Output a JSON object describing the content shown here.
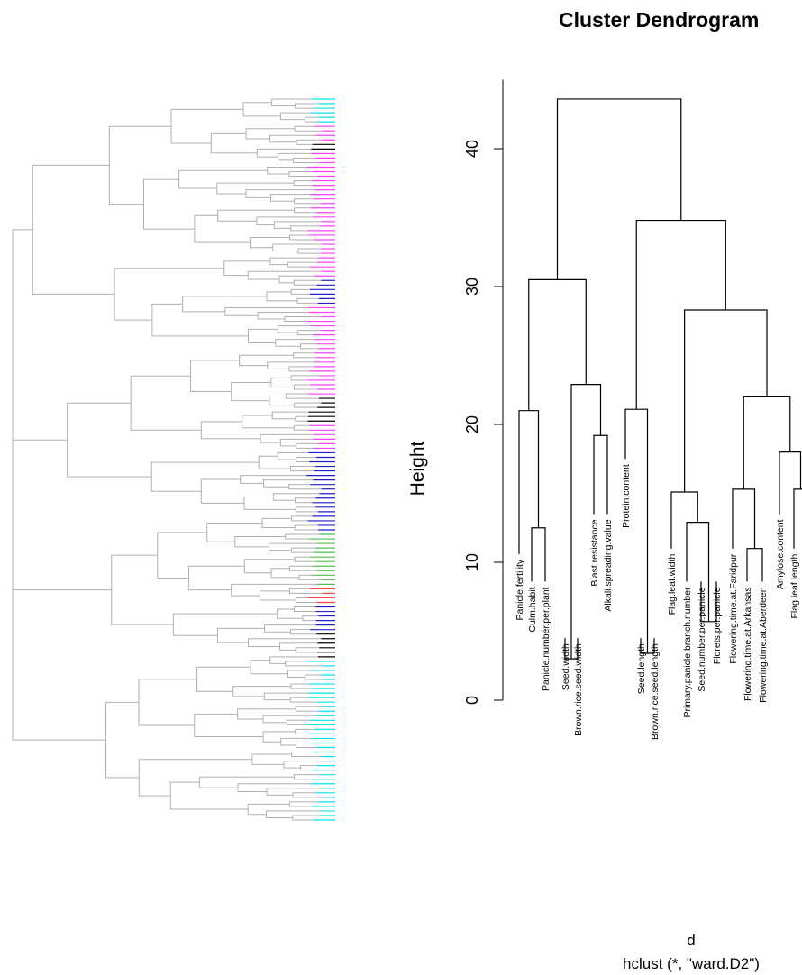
{
  "chart_data": {
    "type": "dendrogram",
    "title": "Cluster Dendrogram",
    "ylabel": "Height",
    "xlabel": "d",
    "sublabel": "hclust (*, \"ward.D2\")",
    "ylim": [
      0,
      45
    ],
    "yticks": [
      0,
      10,
      20,
      30,
      40
    ],
    "leaves": [
      "Panicle.fertility",
      "Culm.habit",
      "Panicle.number.per.plant",
      "Seed.width",
      "Brown.rice.seed.width",
      "Blast.resistance",
      "Alkali.spreading.value",
      "Protein.content",
      "Seed.length",
      "Brown.rice.seed.length",
      "Flag.leaf.width",
      "Primary.panicle.branch.number",
      "Seed.number.per.panicle",
      "Florets.per.panicle",
      "Flowering.time.at.Faridpur",
      "Flowering.time.at.Arkansas",
      "Flowering.time.at.Aberdeen",
      "Amylose.content",
      "Flag.leaf.length"
    ],
    "merges": [
      {
        "id": "m_cp",
        "children": [
          "L1",
          "L2"
        ],
        "height": 12.5
      },
      {
        "id": "m_pcp",
        "children": [
          "L0",
          "m_cp"
        ],
        "height": 21
      },
      {
        "id": "m_sw",
        "children": [
          "L3",
          "L4"
        ],
        "height": 3
      },
      {
        "id": "m_ba",
        "children": [
          "L5",
          "L6"
        ],
        "height": 19.2
      },
      {
        "id": "m_swba",
        "children": [
          "m_sw",
          "m_ba"
        ],
        "height": 22.9
      },
      {
        "id": "m_A",
        "children": [
          "m_pcp",
          "m_swba"
        ],
        "height": 30.5
      },
      {
        "id": "m_sl",
        "children": [
          "L8",
          "L9"
        ],
        "height": 3.4
      },
      {
        "id": "m_psl",
        "children": [
          "L7",
          "m_sl"
        ],
        "height": 21.1
      },
      {
        "id": "m_sf",
        "children": [
          "L12",
          "L13"
        ],
        "height": 5.7
      },
      {
        "id": "m_psf",
        "children": [
          "L11",
          "m_sf"
        ],
        "height": 12.9
      },
      {
        "id": "m_fpsf",
        "children": [
          "L10",
          "m_psf"
        ],
        "height": 15.1
      },
      {
        "id": "m_ab",
        "children": [
          "L15",
          "L16"
        ],
        "height": 11
      },
      {
        "id": "m_fab",
        "children": [
          "L14",
          "m_ab"
        ],
        "height": 15.3
      },
      {
        "id": "m_fl",
        "children": [
          "L18",
          "L_off"
        ],
        "height": 15.3
      },
      {
        "id": "m_afl",
        "children": [
          "L17",
          "m_fl"
        ],
        "height": 18
      },
      {
        "id": "m_flw",
        "children": [
          "m_fab",
          "m_afl"
        ],
        "height": 22
      },
      {
        "id": "m_E",
        "children": [
          "m_fpsf",
          "m_flw"
        ],
        "height": 28.3
      },
      {
        "id": "m_B",
        "children": [
          "m_psl",
          "m_E"
        ],
        "height": 34.8
      },
      {
        "id": "m_root",
        "children": [
          "m_A",
          "m_B"
        ],
        "height": 43.6
      }
    ],
    "leaf_colors": [
      "#00e5ee",
      "#ff3fff",
      "#000000",
      "#1f1fd0",
      "#4cc04c",
      "#ff4040"
    ]
  }
}
